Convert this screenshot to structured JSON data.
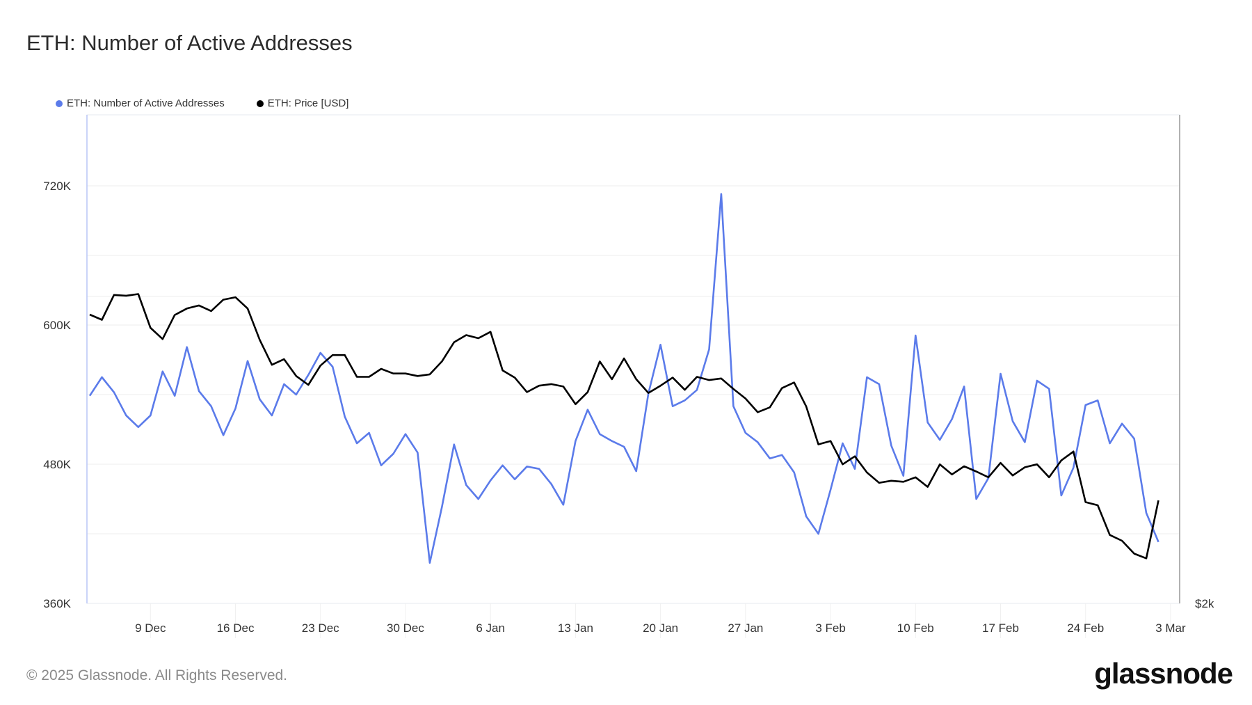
{
  "header": {
    "title": "ETH: Number of Active Addresses"
  },
  "footer": {
    "copyright": "© 2025 Glassnode. All Rights Reserved.",
    "logo": "glassnode"
  },
  "chart_data": {
    "type": "line",
    "title": "ETH: Number of Active Addresses",
    "legend_position": "top-left",
    "grid": true,
    "x": [
      "Dec 4",
      "Dec 5",
      "Dec 6",
      "Dec 7",
      "Dec 8",
      "Dec 9",
      "Dec 10",
      "Dec 11",
      "Dec 12",
      "Dec 13",
      "Dec 14",
      "Dec 15",
      "Dec 16",
      "Dec 17",
      "Dec 18",
      "Dec 19",
      "Dec 20",
      "Dec 21",
      "Dec 22",
      "Dec 23",
      "Dec 24",
      "Dec 25",
      "Dec 26",
      "Dec 27",
      "Dec 28",
      "Dec 29",
      "Dec 30",
      "Dec 31",
      "Jan 1",
      "Jan 2",
      "Jan 3",
      "Jan 4",
      "Jan 5",
      "Jan 6",
      "Jan 7",
      "Jan 8",
      "Jan 9",
      "Jan 10",
      "Jan 11",
      "Jan 12",
      "Jan 13",
      "Jan 14",
      "Jan 15",
      "Jan 16",
      "Jan 17",
      "Jan 18",
      "Jan 19",
      "Jan 20",
      "Jan 21",
      "Jan 22",
      "Jan 23",
      "Jan 24",
      "Jan 25",
      "Jan 26",
      "Jan 27",
      "Jan 28",
      "Jan 29",
      "Jan 30",
      "Jan 31",
      "Feb 1",
      "Feb 2",
      "Feb 3",
      "Feb 4",
      "Feb 5",
      "Feb 6",
      "Feb 7",
      "Feb 8",
      "Feb 9",
      "Feb 10",
      "Feb 11",
      "Feb 12",
      "Feb 13",
      "Feb 14",
      "Feb 15",
      "Feb 16",
      "Feb 17",
      "Feb 18",
      "Feb 19",
      "Feb 20",
      "Feb 21",
      "Feb 22",
      "Feb 23",
      "Feb 24",
      "Feb 25",
      "Feb 26",
      "Feb 27",
      "Feb 28",
      "Mar 1",
      "Mar 2"
    ],
    "x_ticks": [
      "9 Dec",
      "16 Dec",
      "23 Dec",
      "30 Dec",
      "6 Jan",
      "13 Jan",
      "20 Jan",
      "27 Jan",
      "3 Feb",
      "10 Feb",
      "17 Feb",
      "24 Feb",
      "3 Mar"
    ],
    "y_left": {
      "ticks": [
        "720K",
        "600K",
        "480K",
        "360K"
      ],
      "tick_values": [
        720000,
        600000,
        480000,
        360000
      ],
      "ylim": [
        360000,
        780000
      ]
    },
    "y_right": {
      "ticks": [
        "$2k"
      ],
      "tick_values": [
        2000
      ],
      "scale": "log"
    },
    "series": [
      {
        "name": "ETH: Number of Active Addresses",
        "axis": "left",
        "color": "#5b7bea",
        "values": [
          539,
          555,
          542,
          522,
          512,
          522,
          560,
          539,
          581,
          543,
          530,
          505,
          528,
          569,
          536,
          522,
          549,
          540,
          557,
          576,
          564,
          521,
          498,
          507,
          479,
          489,
          506,
          490,
          395,
          443,
          497,
          462,
          450,
          466,
          479,
          467,
          478,
          476,
          463,
          445,
          500,
          527,
          506,
          500,
          495,
          474,
          541,
          583,
          530,
          535,
          544,
          579,
          713,
          530,
          507,
          499,
          485,
          488,
          473,
          435,
          420,
          458,
          498,
          476,
          555,
          549,
          496,
          470,
          591,
          516,
          501,
          519,
          547,
          450,
          468,
          558,
          517,
          499,
          552,
          545,
          453,
          477,
          531,
          535,
          498,
          515,
          502,
          438,
          413
        ],
        "unit": "thousands"
      },
      {
        "name": "ETH: Price [USD]",
        "axis": "right",
        "color": "#000000",
        "values": [
          3840,
          3795,
          4014,
          4007,
          4022,
          3727,
          3633,
          3836,
          3893,
          3920,
          3871,
          3971,
          3993,
          3893,
          3627,
          3428,
          3472,
          3342,
          3276,
          3422,
          3504,
          3504,
          3336,
          3336,
          3397,
          3361,
          3361,
          3342,
          3355,
          3454,
          3607,
          3666,
          3640,
          3693,
          3385,
          3330,
          3223,
          3270,
          3282,
          3264,
          3136,
          3223,
          3454,
          3318,
          3478,
          3318,
          3217,
          3270,
          3330,
          3240,
          3336,
          3312,
          3324,
          3246,
          3177,
          3080,
          3114,
          3252,
          3294,
          3120,
          2864,
          2886,
          2738,
          2788,
          2688,
          2626,
          2638,
          2632,
          2659,
          2602,
          2738,
          2676,
          2726,
          2694,
          2659,
          2747,
          2670,
          2720,
          2738,
          2659,
          2762,
          2818,
          2514,
          2496,
          2334,
          2304,
          2238,
          2214,
          2524
        ]
      }
    ]
  }
}
